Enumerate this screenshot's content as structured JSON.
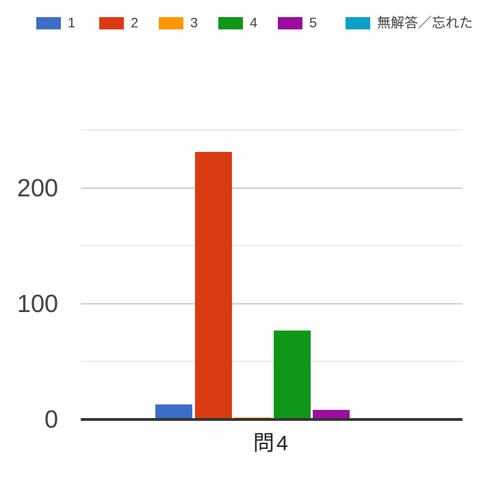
{
  "chart_data": {
    "type": "bar",
    "title": "",
    "categories": [
      "問4"
    ],
    "series": [
      {
        "name": "1",
        "color": "#3C6EC8",
        "values": [
          13
        ]
      },
      {
        "name": "2",
        "color": "#DB3B13",
        "values": [
          231
        ]
      },
      {
        "name": "3",
        "color": "#FF9800",
        "values": [
          2
        ]
      },
      {
        "name": "4",
        "color": "#109618",
        "values": [
          77
        ]
      },
      {
        "name": "5",
        "color": "#9B0D9E",
        "values": [
          8
        ]
      },
      {
        "name": "無解答／忘れた",
        "color": "#0D9FC7",
        "values": [
          0
        ]
      }
    ],
    "xlabel": "問4",
    "ylabel": "",
    "ylim": [
      0,
      250
    ],
    "yticks_labeled": [
      0,
      100,
      200
    ],
    "yticks_all": [
      0,
      50,
      100,
      150,
      200,
      250
    ],
    "grid": true,
    "legend_position": "top"
  },
  "axis": {
    "baseline_color": "#333333",
    "gridline_major_color": "#CCCCCC",
    "gridline_minor_color": "#EBEBEB",
    "ylabel_color": "#404040",
    "xlabel_color": "#212121",
    "legend_text_color": "#3C3C3C"
  }
}
